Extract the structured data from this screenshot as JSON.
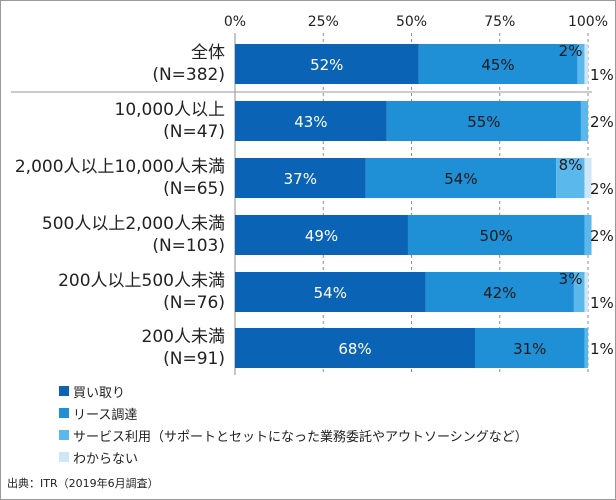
{
  "chart_data": {
    "type": "bar",
    "orientation": "horizontal",
    "stacked": true,
    "percent_axis": true,
    "xlim": [
      0,
      100
    ],
    "x_ticks": [
      "0%",
      "25%",
      "50%",
      "75%",
      "100%"
    ],
    "categories": [
      {
        "label": "全体\n(N=382)"
      },
      {
        "label": "10,000人以上\n(N=47)"
      },
      {
        "label": "2,000人以上10,000人未満\n(N=65)"
      },
      {
        "label": "500人以上2,000人未満\n(N=103)"
      },
      {
        "label": "200人以上500人未満\n(N=76)"
      },
      {
        "label": "200人未満\n(N=91)"
      }
    ],
    "series": [
      {
        "name": "買い取り",
        "color": "#0a63b4",
        "values": [
          52,
          43,
          37,
          49,
          54,
          68
        ],
        "labels": [
          "52%",
          "43%",
          "37%",
          "49%",
          "54%",
          "68%"
        ]
      },
      {
        "name": "リース調達",
        "color": "#1f8fd6",
        "values": [
          45,
          55,
          54,
          50,
          42,
          31
        ],
        "labels": [
          "45%",
          "55%",
          "54%",
          "50%",
          "42%",
          "31%"
        ]
      },
      {
        "name": "サービス利用（サポートとセットになった業務委託やアウトソーシングなど）",
        "color": "#5ab8ec",
        "values": [
          2,
          2,
          8,
          2,
          3,
          1
        ],
        "labels": [
          "2%",
          "2%",
          "8%",
          "2%",
          "3%",
          "1%"
        ]
      },
      {
        "name": "わからない",
        "color": "#cfe6f7",
        "values": [
          1,
          0,
          2,
          0,
          1,
          0
        ],
        "labels": [
          "1%",
          "",
          "2%",
          "",
          "1%",
          ""
        ]
      }
    ],
    "legend_position": "bottom-left"
  },
  "source": "出典：ITR（2019年6月調査）"
}
